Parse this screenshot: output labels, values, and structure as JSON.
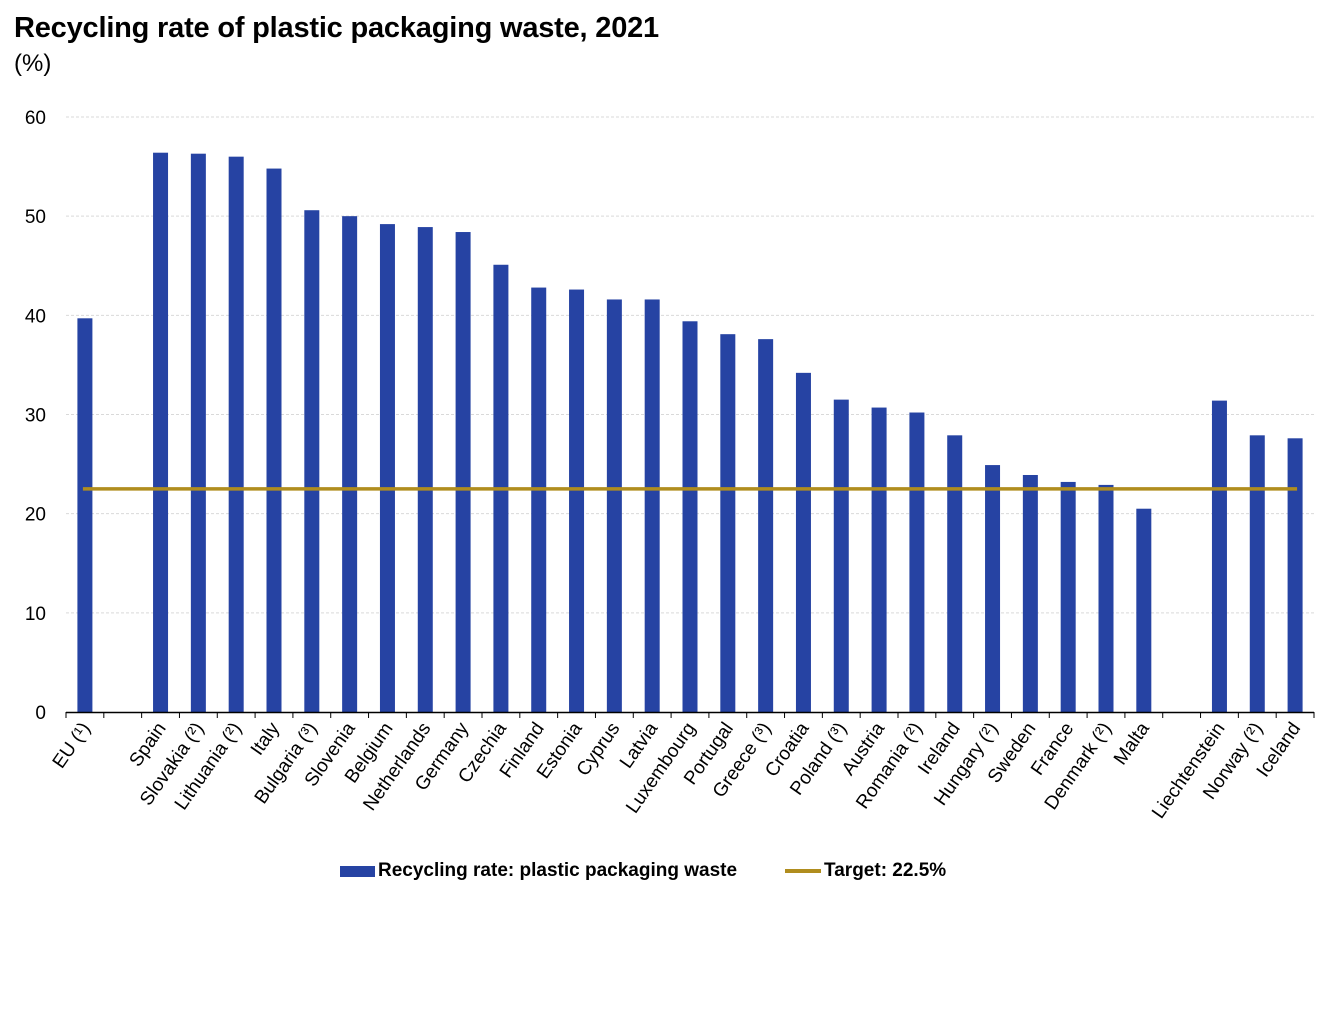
{
  "title": "Recycling rate of plastic packaging waste, 2021",
  "subtitle": "(%)",
  "legend": {
    "bars_label": "Recycling rate: plastic packaging waste",
    "target_label": "Target: 22.5%"
  },
  "colors": {
    "bar": "#2643a3",
    "target": "#b08d1e",
    "grid": "#d9d9d9"
  },
  "chart_data": {
    "type": "bar",
    "title": "Recycling rate of plastic packaging waste, 2021",
    "ylabel": "(%)",
    "xlabel": "",
    "ylim": [
      0,
      60
    ],
    "yticks": [
      0,
      10,
      20,
      30,
      40,
      50,
      60
    ],
    "grid": true,
    "legend_position": "bottom-center",
    "categories": [
      "EU (¹)",
      "",
      "Spain",
      "Slovakia (²)",
      "Lithuania (²)",
      "Italy",
      "Bulgaria (³)",
      "Slovenia",
      "Belgium",
      "Netherlands",
      "Germany",
      "Czechia",
      "Finland",
      "Estonia",
      "Cyprus",
      "Latvia",
      "Luxembourg",
      "Portugal",
      "Greece (³)",
      "Croatia",
      "Poland (³)",
      "Austria",
      "Romania (²)",
      "Ireland",
      "Hungary (²)",
      "Sweden",
      "France",
      "Denmark (²)",
      "Malta",
      "",
      "Liechtenstein",
      "Norway (²)",
      "Iceland"
    ],
    "series": [
      {
        "name": "Recycling rate: plastic packaging waste",
        "type": "bar",
        "values": [
          39.7,
          null,
          56.4,
          56.3,
          56.0,
          54.8,
          50.6,
          50.0,
          49.2,
          48.9,
          48.4,
          45.1,
          42.8,
          42.6,
          41.6,
          41.6,
          39.4,
          38.1,
          37.6,
          34.2,
          31.5,
          30.7,
          30.2,
          27.9,
          24.9,
          23.9,
          23.2,
          22.9,
          20.5,
          null,
          31.4,
          27.9,
          27.6
        ]
      },
      {
        "name": "Target: 22.5%",
        "type": "line",
        "value": 22.5
      }
    ]
  }
}
